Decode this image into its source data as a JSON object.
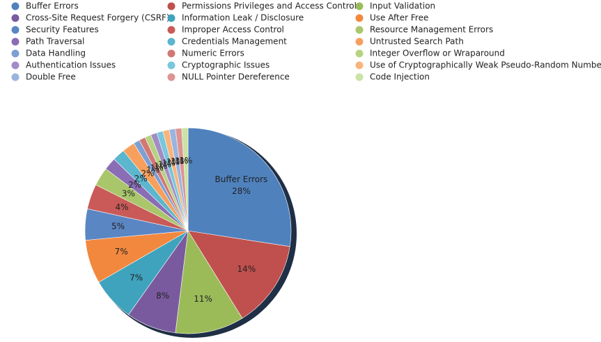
{
  "chart_data": {
    "type": "pie",
    "categories": [
      "Buffer Errors",
      "Permissions Privileges and Access Control",
      "Input Validation",
      "Cross-Site Request Forgery (CSRF)",
      "Information Leak / Disclosure",
      "Use After Free",
      "Security Features",
      "Improper Access Control",
      "Resource Management Errors",
      "Path Traversal",
      "Credentials Management",
      "Untrusted Search Path",
      "Data Handling",
      "Numeric Errors",
      "Integer Overflow or Wraparound",
      "Authentication Issues",
      "Cryptographic Issues",
      "Use of Cryptographically Weak Pseudo-Random Number",
      "Double Free",
      "NULL Pointer Dereference",
      "Code Injection"
    ],
    "values": [
      28,
      14,
      11,
      8,
      7,
      7,
      5,
      4,
      3,
      2,
      2,
      2,
      1,
      1,
      1,
      1,
      1,
      1,
      1,
      1,
      1
    ],
    "value_labels": [
      "28%",
      "14%",
      "11%",
      "8%",
      "7%",
      "7%",
      "5%",
      "4%",
      "3%",
      "2%",
      "2%",
      "2%",
      "1%",
      "1%",
      "1%",
      "1%",
      "1%",
      "1%",
      "1%",
      "1%",
      "1%"
    ],
    "colors": [
      "#4f81bd",
      "#c0504d",
      "#9bbb59",
      "#7a5a9e",
      "#3fa3bd",
      "#f2883e",
      "#5a86c4",
      "#c95a57",
      "#a9c66b",
      "#8a6db5",
      "#5bb6ce",
      "#f7a05e",
      "#7d9fd3",
      "#d37774",
      "#b7d282",
      "#a28cc6",
      "#79c7dc",
      "#f9b47c",
      "#9ab4de",
      "#dc9593",
      "#cbe3a4"
    ],
    "legend": "top"
  }
}
